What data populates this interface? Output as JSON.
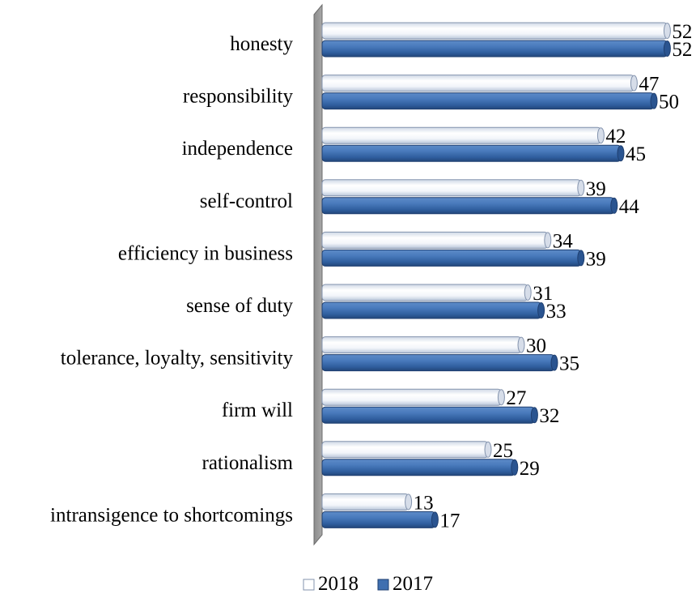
{
  "chart_data": {
    "type": "bar",
    "orientation": "horizontal",
    "style": "3d-cylinder",
    "categories": [
      "honesty",
      "responsibility",
      "independence",
      "self-control",
      "efficiency in business",
      "sense of duty",
      "tolerance, loyalty, sensitivity",
      "firm will",
      "rationalism",
      "intransigence to shortcomings"
    ],
    "series": [
      {
        "name": "2018",
        "values": [
          52,
          47,
          42,
          39,
          34,
          31,
          30,
          27,
          25,
          13
        ],
        "color": "#ffffff"
      },
      {
        "name": "2017",
        "values": [
          52,
          50,
          45,
          44,
          39,
          33,
          35,
          32,
          29,
          17
        ],
        "color": "#3f6fb0"
      }
    ],
    "xlim": [
      0,
      55
    ],
    "grid": false,
    "legend": "bottom-center",
    "data_labels": true
  }
}
